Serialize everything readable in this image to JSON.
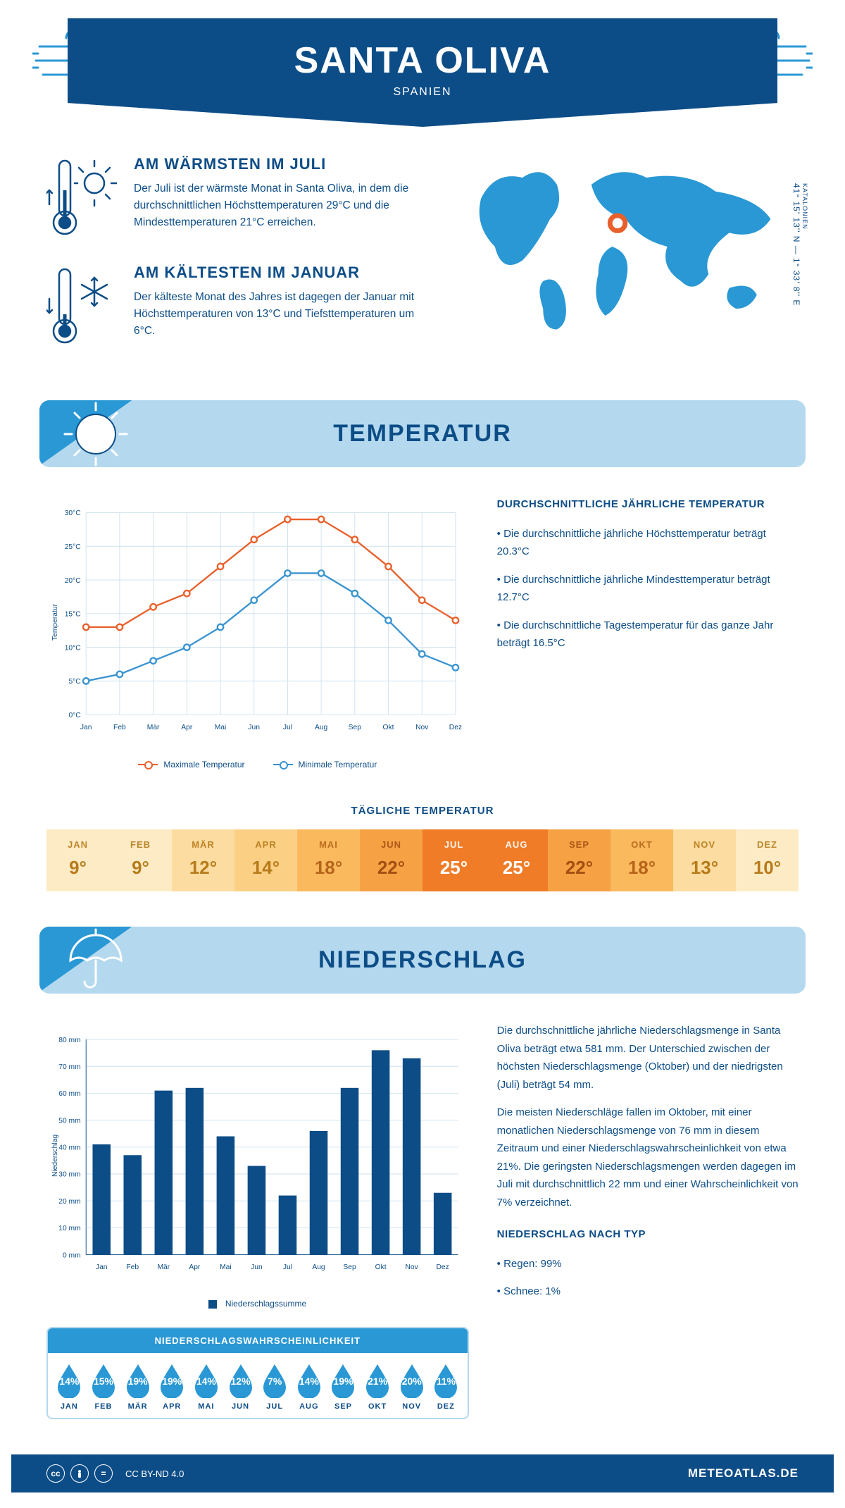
{
  "header": {
    "title": "SANTA OLIVA",
    "subtitle": "SPANIEN"
  },
  "colors": {
    "primary": "#0d4d87",
    "accent": "#2a98d4",
    "light": "#b4d9ee",
    "max_line": "#e8602c",
    "min_line": "#3a94d0",
    "grid": "#cde2ef"
  },
  "intro": {
    "warm": {
      "title": "AM WÄRMSTEN IM JULI",
      "text": "Der Juli ist der wärmste Monat in Santa Oliva, in dem die durchschnittlichen Höchsttemperaturen 29°C und die Mindesttemperaturen 21°C erreichen."
    },
    "cold": {
      "title": "AM KÄLTESTEN IM JANUAR",
      "text": "Der kälteste Monat des Jahres ist dagegen der Januar mit Höchsttemperaturen von 13°C und Tiefsttemperaturen um 6°C."
    },
    "coords": "41° 15' 13'' N — 1° 33' 8'' E",
    "region": "KATALONIEN"
  },
  "months": [
    "Jan",
    "Feb",
    "Mär",
    "Apr",
    "Mai",
    "Jun",
    "Jul",
    "Aug",
    "Sep",
    "Okt",
    "Nov",
    "Dez"
  ],
  "months_upper": [
    "JAN",
    "FEB",
    "MÄR",
    "APR",
    "MAI",
    "JUN",
    "JUL",
    "AUG",
    "SEP",
    "OKT",
    "NOV",
    "DEZ"
  ],
  "temperature": {
    "banner": "TEMPERATUR",
    "side_title": "DURCHSCHNITTLICHE JÄHRLICHE TEMPERATUR",
    "side_bullets": [
      "• Die durchschnittliche jährliche Höchsttemperatur beträgt 20.3°C",
      "• Die durchschnittliche jährliche Mindesttemperatur beträgt 12.7°C",
      "• Die durchschnittliche Tagestemperatur für das ganze Jahr beträgt 16.5°C"
    ],
    "chart": {
      "type": "line",
      "ylabel": "Temperatur",
      "ylim": [
        0,
        30
      ],
      "ytick_step": 5,
      "ytick_suffix": "°C",
      "max_series": {
        "label": "Maximale Temperatur",
        "color": "#e8602c",
        "values": [
          13,
          13,
          16,
          18,
          22,
          26,
          29,
          29,
          26,
          22,
          17,
          14
        ]
      },
      "min_series": {
        "label": "Minimale Temperatur",
        "color": "#3a94d0",
        "values": [
          5,
          6,
          8,
          10,
          13,
          17,
          21,
          21,
          18,
          14,
          9,
          7
        ]
      }
    },
    "daily": {
      "title": "TÄGLICHE TEMPERATUR",
      "values": [
        "9°",
        "9°",
        "12°",
        "14°",
        "18°",
        "22°",
        "25°",
        "25°",
        "22°",
        "18°",
        "13°",
        "10°"
      ],
      "bg_colors": [
        "#fdebc5",
        "#fdebc5",
        "#fcdca0",
        "#fbd084",
        "#f9b95c",
        "#f6a244",
        "#f07c28",
        "#f07c28",
        "#f6a244",
        "#f9b95c",
        "#fcdca0",
        "#fdebc5"
      ],
      "text_colors": [
        "#b77b1a",
        "#b77b1a",
        "#b77b1a",
        "#b77b1a",
        "#b7641a",
        "#a34f12",
        "#ffffff",
        "#ffffff",
        "#a34f12",
        "#b7641a",
        "#b77b1a",
        "#b77b1a"
      ]
    }
  },
  "precipitation": {
    "banner": "NIEDERSCHLAG",
    "chart": {
      "type": "bar",
      "ylabel": "Niederschlag",
      "ylim": [
        0,
        80
      ],
      "ytick_step": 10,
      "ytick_suffix": " mm",
      "bar_color": "#0d4d87",
      "values": [
        41,
        37,
        61,
        62,
        44,
        33,
        22,
        46,
        62,
        76,
        73,
        23
      ],
      "legend": "Niederschlagssumme"
    },
    "text1": "Die durchschnittliche jährliche Niederschlagsmenge in Santa Oliva beträgt etwa 581 mm. Der Unterschied zwischen der höchsten Niederschlagsmenge (Oktober) und der niedrigsten (Juli) beträgt 54 mm.",
    "text2": "Die meisten Niederschläge fallen im Oktober, mit einer monatlichen Niederschlagsmenge von 76 mm in diesem Zeitraum und einer Niederschlagswahrscheinlichkeit von etwa 21%. Die geringsten Niederschlagsmengen werden dagegen im Juli mit durchschnittlich 22 mm und einer Wahrscheinlichkeit von 7% verzeichnet.",
    "type_title": "NIEDERSCHLAG NACH TYP",
    "type_bullets": [
      "• Regen: 99%",
      "• Schnee: 1%"
    ],
    "probability": {
      "title": "NIEDERSCHLAGSWAHRSCHEINLICHKEIT",
      "values": [
        "14%",
        "15%",
        "19%",
        "19%",
        "14%",
        "12%",
        "7%",
        "14%",
        "19%",
        "21%",
        "20%",
        "11%"
      ],
      "drop_color": "#2a98d4"
    }
  },
  "footer": {
    "license": "CC BY-ND 4.0",
    "brand": "METEOATLAS.DE"
  }
}
